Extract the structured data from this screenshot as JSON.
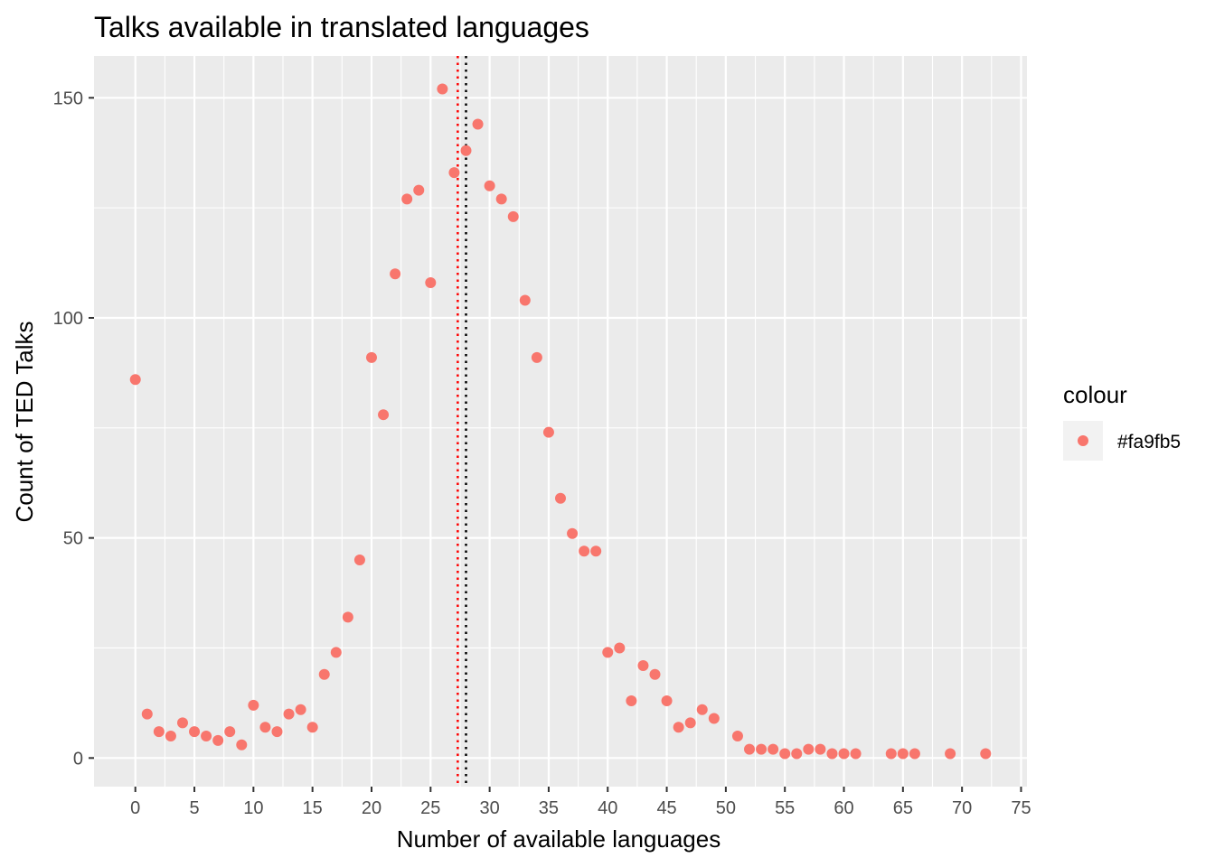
{
  "chart_data": {
    "type": "scatter",
    "title": "Talks available in translated languages",
    "xlabel": "Number of available languages",
    "ylabel": "Count of TED Talks",
    "xlim": [
      -3.5,
      75.5
    ],
    "ylim": [
      -6.5,
      159.5
    ],
    "x_ticks": [
      0,
      5,
      10,
      15,
      20,
      25,
      30,
      35,
      40,
      45,
      50,
      55,
      60,
      65,
      70,
      75
    ],
    "x_tick_labels": [
      "0",
      "5",
      "10",
      "15",
      "20",
      "25",
      "30",
      "35",
      "40",
      "45",
      "50",
      "55",
      "60",
      "65",
      "70",
      "75"
    ],
    "y_ticks": [
      0,
      50,
      100,
      150
    ],
    "y_tick_labels": [
      "0",
      "50",
      "100",
      "150"
    ],
    "grid": true,
    "panel_background": "#ebebeb",
    "point_color": "#f8766d",
    "series": [
      {
        "x": [
          0,
          1,
          2,
          3,
          4,
          5,
          6,
          7,
          8,
          9,
          10,
          11,
          12,
          13,
          14,
          15,
          16,
          17,
          18,
          19,
          20,
          21,
          22,
          23,
          24,
          25,
          26,
          27,
          28,
          29,
          30,
          31,
          32,
          33,
          34,
          35,
          36,
          37,
          38,
          39,
          40,
          41,
          42,
          43,
          44,
          45,
          46,
          47,
          48,
          49,
          51,
          52,
          53,
          54,
          55,
          56,
          57,
          58,
          59,
          60,
          61,
          64,
          65,
          66,
          69,
          72
        ],
        "y": [
          86,
          10,
          6,
          5,
          8,
          6,
          5,
          4,
          6,
          3,
          12,
          7,
          6,
          10,
          11,
          7,
          19,
          24,
          32,
          45,
          91,
          78,
          110,
          127,
          129,
          108,
          152,
          133,
          138,
          144,
          130,
          127,
          123,
          104,
          91,
          74,
          59,
          51,
          47,
          47,
          24,
          25,
          13,
          21,
          19,
          13,
          7,
          8,
          11,
          9,
          5,
          2,
          2,
          2,
          1,
          1,
          2,
          2,
          1,
          1,
          1,
          1,
          1,
          1,
          1,
          1
        ]
      }
    ],
    "reference_lines": [
      {
        "x": 27.3,
        "color": "#ff0000",
        "style": "dotted"
      },
      {
        "x": 28,
        "color": "#000000",
        "style": "dotted"
      }
    ],
    "legend": {
      "title": "colour",
      "placement": "right",
      "entries": [
        {
          "label": "#fa9fb5",
          "color": "#f8766d"
        }
      ]
    }
  }
}
